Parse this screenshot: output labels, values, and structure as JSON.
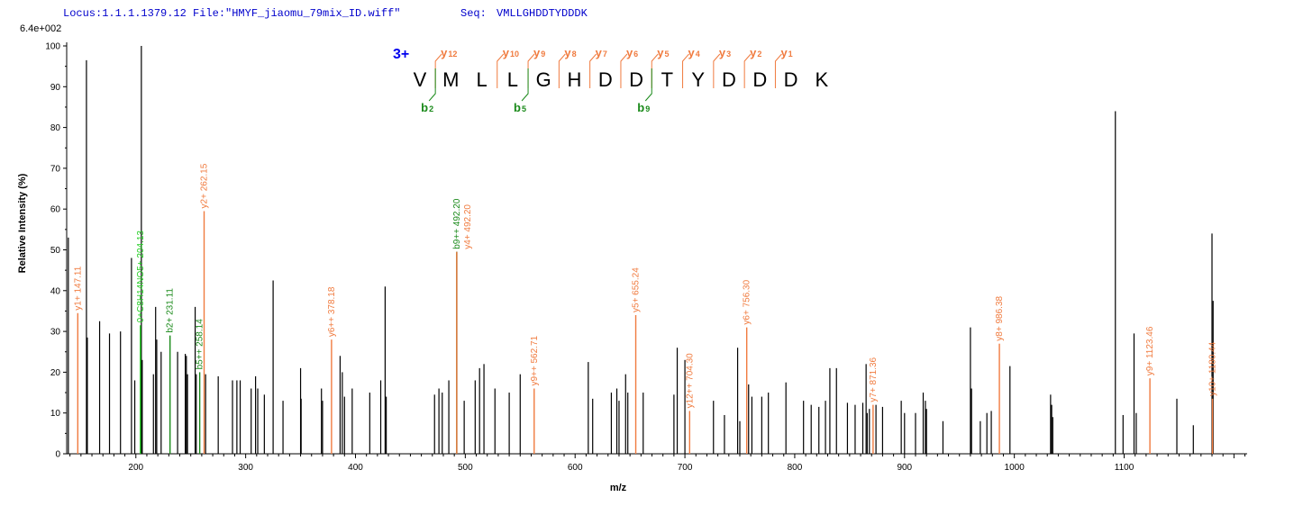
{
  "header": {
    "locus": "Locus:1.1.1.1379.12 File:\"HMYF_jiaomu_79mix_ID.wiff\"",
    "seq_label": "Seq:",
    "seq_value": "VMLLGHDDTYDDDK",
    "max_intensity": "6.4e+002"
  },
  "colors": {
    "plain": "#000000",
    "y_ion": "#f07b3f",
    "b_ion": "#1a8a1a",
    "other_ion": "#22cc22",
    "charge": "#0000ee"
  },
  "chart_data": {
    "type": "bar",
    "xlabel": "m/z",
    "ylabel": "Relative   Intensity (%)",
    "xlim": [
      137,
      1212
    ],
    "ylim": [
      0,
      100
    ],
    "xticks": [
      200,
      300,
      400,
      500,
      600,
      700,
      800,
      900,
      1000,
      1100
    ],
    "yticks": [
      0,
      10,
      20,
      30,
      40,
      50,
      60,
      70,
      80,
      90,
      100
    ],
    "peaks": [
      {
        "x": 138.5,
        "y": 53
      },
      {
        "x": 155,
        "y": 96.5
      },
      {
        "x": 155.8,
        "y": 28.5
      },
      {
        "x": 167,
        "y": 32.5
      },
      {
        "x": 176,
        "y": 29.5
      },
      {
        "x": 186,
        "y": 30
      },
      {
        "x": 196,
        "y": 48
      },
      {
        "x": 199,
        "y": 18
      },
      {
        "x": 205,
        "y": 100
      },
      {
        "x": 205.8,
        "y": 23
      },
      {
        "x": 216,
        "y": 19.5
      },
      {
        "x": 218,
        "y": 36
      },
      {
        "x": 219,
        "y": 28
      },
      {
        "x": 223,
        "y": 25
      },
      {
        "x": 238,
        "y": 25
      },
      {
        "x": 245,
        "y": 24.5
      },
      {
        "x": 246,
        "y": 24
      },
      {
        "x": 247,
        "y": 19.5
      },
      {
        "x": 254,
        "y": 36
      },
      {
        "x": 255,
        "y": 19.5
      },
      {
        "x": 263.5,
        "y": 19.5
      },
      {
        "x": 275,
        "y": 19
      },
      {
        "x": 288,
        "y": 18
      },
      {
        "x": 292,
        "y": 18
      },
      {
        "x": 295,
        "y": 18
      },
      {
        "x": 305,
        "y": 16
      },
      {
        "x": 309,
        "y": 19
      },
      {
        "x": 311,
        "y": 16
      },
      {
        "x": 317,
        "y": 14.5
      },
      {
        "x": 325,
        "y": 42.5
      },
      {
        "x": 334,
        "y": 13
      },
      {
        "x": 350,
        "y": 21
      },
      {
        "x": 350.5,
        "y": 13.5
      },
      {
        "x": 369,
        "y": 16
      },
      {
        "x": 370,
        "y": 13
      },
      {
        "x": 386,
        "y": 24
      },
      {
        "x": 388,
        "y": 20
      },
      {
        "x": 390,
        "y": 14
      },
      {
        "x": 397,
        "y": 16
      },
      {
        "x": 413,
        "y": 15
      },
      {
        "x": 423,
        "y": 18
      },
      {
        "x": 427,
        "y": 41
      },
      {
        "x": 428,
        "y": 14
      },
      {
        "x": 472,
        "y": 14.5
      },
      {
        "x": 476,
        "y": 16
      },
      {
        "x": 479,
        "y": 15
      },
      {
        "x": 485,
        "y": 18
      },
      {
        "x": 492.3,
        "y": 49.5
      },
      {
        "x": 499,
        "y": 13
      },
      {
        "x": 509,
        "y": 18
      },
      {
        "x": 513,
        "y": 21
      },
      {
        "x": 517,
        "y": 22
      },
      {
        "x": 527,
        "y": 16
      },
      {
        "x": 540,
        "y": 15
      },
      {
        "x": 550,
        "y": 19.5
      },
      {
        "x": 612,
        "y": 22.5
      },
      {
        "x": 616,
        "y": 13.5
      },
      {
        "x": 633,
        "y": 15
      },
      {
        "x": 638,
        "y": 16
      },
      {
        "x": 640,
        "y": 13
      },
      {
        "x": 646,
        "y": 19.5
      },
      {
        "x": 648,
        "y": 15
      },
      {
        "x": 662,
        "y": 15
      },
      {
        "x": 690,
        "y": 14.5
      },
      {
        "x": 693,
        "y": 26
      },
      {
        "x": 700,
        "y": 23
      },
      {
        "x": 726,
        "y": 13
      },
      {
        "x": 736,
        "y": 9.5
      },
      {
        "x": 748,
        "y": 26
      },
      {
        "x": 750,
        "y": 8
      },
      {
        "x": 758,
        "y": 17
      },
      {
        "x": 761,
        "y": 14
      },
      {
        "x": 770,
        "y": 14
      },
      {
        "x": 776,
        "y": 15
      },
      {
        "x": 792,
        "y": 17.5
      },
      {
        "x": 808,
        "y": 13
      },
      {
        "x": 815,
        "y": 12
      },
      {
        "x": 822,
        "y": 11.5
      },
      {
        "x": 828,
        "y": 13
      },
      {
        "x": 832,
        "y": 21
      },
      {
        "x": 838,
        "y": 21
      },
      {
        "x": 848,
        "y": 12.5
      },
      {
        "x": 855,
        "y": 12
      },
      {
        "x": 862,
        "y": 12.5
      },
      {
        "x": 865,
        "y": 22
      },
      {
        "x": 866,
        "y": 10
      },
      {
        "x": 868,
        "y": 11
      },
      {
        "x": 874,
        "y": 12
      },
      {
        "x": 880,
        "y": 11.5
      },
      {
        "x": 897,
        "y": 13
      },
      {
        "x": 900,
        "y": 10
      },
      {
        "x": 910,
        "y": 10
      },
      {
        "x": 917,
        "y": 15
      },
      {
        "x": 919,
        "y": 13
      },
      {
        "x": 920,
        "y": 11
      },
      {
        "x": 935,
        "y": 8
      },
      {
        "x": 960,
        "y": 31
      },
      {
        "x": 961,
        "y": 16
      },
      {
        "x": 969,
        "y": 8
      },
      {
        "x": 975,
        "y": 10
      },
      {
        "x": 979,
        "y": 10.5
      },
      {
        "x": 996,
        "y": 21.5
      },
      {
        "x": 1033,
        "y": 14.5
      },
      {
        "x": 1034,
        "y": 12
      },
      {
        "x": 1035,
        "y": 9
      },
      {
        "x": 1092,
        "y": 84
      },
      {
        "x": 1099,
        "y": 9.5
      },
      {
        "x": 1109,
        "y": 29.5
      },
      {
        "x": 1111,
        "y": 10
      },
      {
        "x": 1148,
        "y": 13.5
      },
      {
        "x": 1163,
        "y": 7
      },
      {
        "x": 1180,
        "y": 54
      },
      {
        "x": 1181,
        "y": 37.5
      }
    ],
    "annotated": [
      {
        "x": 147.11,
        "y": 34.5,
        "label": "y1+ 147.11",
        "ion": "y"
      },
      {
        "x": 204.13,
        "y": 31.5,
        "label": "0+C8H14NO5+ 204.13",
        "ion": "other"
      },
      {
        "x": 231.11,
        "y": 29,
        "label": "b2+ 231.11",
        "ion": "b"
      },
      {
        "x": 258.14,
        "y": 20,
        "label": "b5++ 258.14",
        "ion": "b"
      },
      {
        "x": 262.15,
        "y": 59.5,
        "label": "y2+ 262.15",
        "ion": "y"
      },
      {
        "x": 378.18,
        "y": 28,
        "label": "y6++ 378.18",
        "ion": "y"
      },
      {
        "x": 492.2,
        "y": 49.5,
        "label": "b9++ 492.20",
        "ion": "b"
      },
      {
        "x": 492.2,
        "y": 49.5,
        "label": "y4+ 492.20",
        "ion": "y"
      },
      {
        "x": 562.71,
        "y": 16,
        "label": "y9++ 562.71",
        "ion": "y"
      },
      {
        "x": 655.24,
        "y": 34,
        "label": "y5+ 655.24",
        "ion": "y"
      },
      {
        "x": 704.3,
        "y": 10.5,
        "label": "y12++ 704.30",
        "ion": "y"
      },
      {
        "x": 756.3,
        "y": 31,
        "label": "y6+ 756.30",
        "ion": "y"
      },
      {
        "x": 871.36,
        "y": 12,
        "label": "y7+ 871.36",
        "ion": "y"
      },
      {
        "x": 986.38,
        "y": 27,
        "label": "y8+ 986.38",
        "ion": "y"
      },
      {
        "x": 1123.46,
        "y": 18.5,
        "label": "y9+ 1123.46",
        "ion": "y"
      },
      {
        "x": 1180.44,
        "y": 13.5,
        "label": "y10+ 1180.44",
        "ion": "y"
      }
    ]
  },
  "sequence": {
    "charge": "3+",
    "residues": [
      "V",
      "M",
      "L",
      "L",
      "G",
      "H",
      "D",
      "D",
      "T",
      "Y",
      "D",
      "D",
      "D",
      "K"
    ],
    "y_ions": [
      {
        "after": 1,
        "n": "12"
      },
      {
        "after": 3,
        "n": "10"
      },
      {
        "after": 4,
        "n": "9"
      },
      {
        "after": 5,
        "n": "8"
      },
      {
        "after": 6,
        "n": "7"
      },
      {
        "after": 7,
        "n": "6"
      },
      {
        "after": 8,
        "n": "5"
      },
      {
        "after": 9,
        "n": "4"
      },
      {
        "after": 10,
        "n": "3"
      },
      {
        "after": 11,
        "n": "2"
      },
      {
        "after": 12,
        "n": "1"
      }
    ],
    "b_ions": [
      {
        "after": 1,
        "n": "2"
      },
      {
        "after": 4,
        "n": "5"
      },
      {
        "after": 8,
        "n": "9"
      }
    ]
  }
}
